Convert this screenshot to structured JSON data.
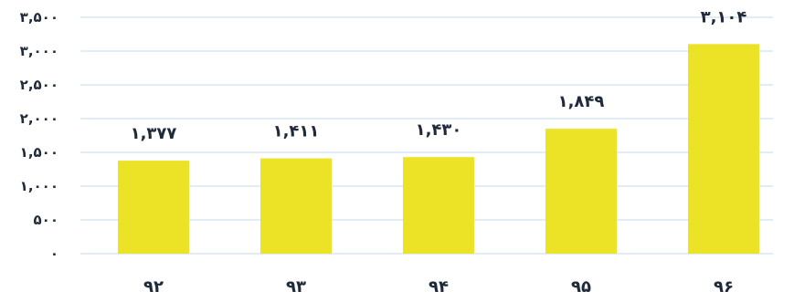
{
  "chart_data": {
    "type": "bar",
    "categories": [
      "۹۲",
      "۹۳",
      "۹۴",
      "۹۵",
      "۹۶"
    ],
    "values": [
      1377,
      1411,
      1430,
      1849,
      3104
    ],
    "value_labels": [
      "۱,۳۷۷",
      "۱,۴۱۱",
      "۱,۴۳۰",
      "۱,۸۴۹",
      "۳,۱۰۴"
    ],
    "ylim": [
      0,
      3500
    ],
    "yticks": [
      0,
      500,
      1000,
      1500,
      2000,
      2500,
      3000,
      3500
    ],
    "ytick_labels": [
      "۰",
      "۵۰۰",
      "۱,۰۰۰",
      "۱,۵۰۰",
      "۲,۰۰۰",
      "۲,۵۰۰",
      "۳,۰۰۰",
      "۳,۵۰۰"
    ],
    "grid": true,
    "legend": "none",
    "colors": {
      "bar": "#ede326",
      "grid": "#cfe0ef",
      "text": "#1f2a3a"
    }
  }
}
